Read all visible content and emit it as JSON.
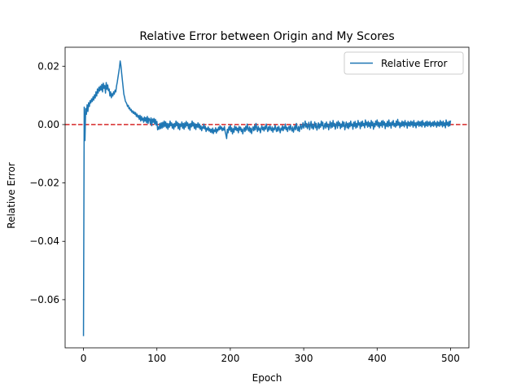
{
  "chart_data": {
    "type": "line",
    "title": "Relative Error between Origin and My Scores",
    "xlabel": "Epoch",
    "ylabel": "Relative Error",
    "xlim": [
      -25,
      525
    ],
    "ylim": [
      -0.0765,
      0.0265
    ],
    "x_ticks": [
      0,
      100,
      200,
      300,
      400,
      500
    ],
    "y_ticks": [
      -0.06,
      -0.04,
      -0.02,
      0.0,
      0.02
    ],
    "x_tick_labels": [
      "0",
      "100",
      "200",
      "300",
      "400",
      "500"
    ],
    "y_tick_labels": [
      "−0.06",
      "−0.04",
      "−0.02",
      "0.00",
      "0.02"
    ],
    "grid": false,
    "legend_position": "top-right",
    "reference_line": {
      "y": 0.0,
      "color": "#d62728",
      "style": "dashed"
    },
    "series": [
      {
        "name": "Relative Error",
        "color": "#1f77b4",
        "x_start": 0,
        "x_step": 1,
        "values": [
          -0.0725,
          0.006,
          -0.0055,
          0.0055,
          0.0035,
          0.0068,
          0.0045,
          0.0075,
          0.0062,
          0.0082,
          0.0074,
          0.0088,
          0.0079,
          0.0095,
          0.0084,
          0.0102,
          0.0091,
          0.0112,
          0.0098,
          0.0122,
          0.0108,
          0.0128,
          0.0115,
          0.0132,
          0.0118,
          0.0138,
          0.0112,
          0.0142,
          0.0124,
          0.0134,
          0.0108,
          0.0144,
          0.0121,
          0.0136,
          0.0116,
          0.0122,
          0.0098,
          0.0112,
          0.0092,
          0.0106,
          0.0098,
          0.0112,
          0.0104,
          0.0118,
          0.0112,
          0.0132,
          0.0145,
          0.0162,
          0.0178,
          0.0195,
          0.0218,
          0.0202,
          0.0176,
          0.0152,
          0.0128,
          0.0104,
          0.0094,
          0.0081,
          0.0076,
          0.0071,
          0.0062,
          0.0066,
          0.0054,
          0.0058,
          0.0048,
          0.0052,
          0.0042,
          0.0047,
          0.0038,
          0.0044,
          0.0035,
          0.0041,
          0.0028,
          0.0036,
          0.0025,
          0.0031,
          0.0018,
          0.0032,
          0.0012,
          0.0028,
          0.0015,
          0.0022,
          0.0008,
          0.0026,
          0.0012,
          0.0024,
          0.0006,
          0.0028,
          0.0004,
          0.0022,
          0.0018,
          0.0004,
          0.0023,
          -0.0004,
          0.0019,
          0.0008,
          0.0021,
          0.0002,
          0.0018,
          -0.0002,
          0.0011,
          -0.0018,
          -0.0008,
          -0.0016,
          0.0004,
          -0.0014,
          0.0006,
          -0.0012,
          0.0008,
          -0.0009,
          0.0012,
          -0.0006,
          0.0009,
          -0.0011,
          0.0004,
          -0.0016,
          0.0003,
          -0.0009,
          0.0012,
          -0.0004,
          0.0006,
          -0.0012,
          0.0002,
          -0.0016,
          0.0004,
          -0.0008,
          0.0012,
          -0.0004,
          0.0008,
          -0.0014,
          0.0004,
          -0.0018,
          0.0002,
          -0.0006,
          0.0009,
          -0.0012,
          0.0004,
          -0.0016,
          0.0006,
          -0.0009,
          0.0011,
          -0.0004,
          0.0006,
          -0.0014,
          0.0002,
          -0.0019,
          0.0004,
          -0.0008,
          0.0012,
          -0.0005,
          0.0007,
          -0.0013,
          0.0003,
          -0.0017,
          0.0001,
          -0.0009,
          0.0006,
          -0.0011,
          0.0002,
          -0.0016,
          -0.0004,
          -0.0021,
          -0.0008,
          -0.0013,
          0.0002,
          -0.0015,
          -0.0006,
          -0.0024,
          -0.0012,
          -0.0019,
          -0.0008,
          -0.0022,
          -0.0014,
          -0.0026,
          -0.0016,
          -0.0028,
          -0.0012,
          -0.0031,
          -0.0018,
          -0.0024,
          -0.0011,
          -0.0029,
          -0.0016,
          -0.0022,
          -0.0009,
          -0.0018,
          -0.0004,
          -0.0016,
          -0.0008,
          -0.0021,
          -0.0012,
          -0.0019,
          -0.0006,
          -0.0024,
          -0.0035,
          -0.0048,
          -0.0016,
          -0.0028,
          -0.0008,
          -0.0019,
          -0.0002,
          -0.0024,
          -0.0011,
          -0.0032,
          -0.0014,
          -0.0026,
          -0.0005,
          -0.0018,
          -0.0008,
          -0.0021,
          -0.0012,
          -0.0028,
          -0.0006,
          -0.0019,
          -0.0009,
          -0.0024,
          -0.0015,
          -0.0032,
          -0.0018,
          -0.0011,
          -0.0024,
          -0.0006,
          -0.0019,
          0.0002,
          -0.0014,
          -0.0022,
          -0.0008,
          -0.0026,
          -0.0012,
          -0.0031,
          -0.0016,
          -0.0008,
          -0.0021,
          -0.0004,
          -0.0018,
          0.0004,
          -0.0011,
          -0.0024,
          -0.0006,
          -0.0019,
          -0.0012,
          -0.0028,
          -0.0014,
          -0.0004,
          -0.0018,
          -0.0009,
          -0.0022,
          -0.0006,
          -0.0016,
          0.0002,
          -0.0012,
          -0.0024,
          -0.0008,
          -0.0019,
          -0.0004,
          -0.0014,
          -0.0021,
          -0.0008,
          -0.0026,
          -0.0012,
          -0.0018,
          -0.0002,
          -0.0014,
          -0.0024,
          -0.0009,
          -0.0022,
          -0.0006,
          -0.0016,
          -0.0028,
          -0.0012,
          -0.0019,
          -0.0004,
          -0.0021,
          -0.0008,
          -0.0014,
          0.0002,
          -0.0018,
          -0.0009,
          -0.0024,
          -0.0011,
          -0.0006,
          -0.0019,
          -0.0002,
          -0.0014,
          -0.0022,
          -0.0008,
          -0.0026,
          -0.0014,
          -0.0004,
          -0.0018,
          0.0004,
          -0.0012,
          -0.0021,
          -0.0006,
          -0.0024,
          -0.0009,
          0.0001,
          -0.0016,
          -0.0008,
          0.0006,
          -0.0012,
          -0.0004,
          0.0012,
          -0.0009,
          0.0004,
          -0.0014,
          -0.0006,
          0.0008,
          -0.0018,
          -0.0004,
          0.0011,
          -0.0012,
          0.0002,
          -0.0016,
          -0.0006,
          0.0009,
          -0.0011,
          0.0004,
          -0.0019,
          -0.0008,
          0.0006,
          -0.0014,
          0.0002,
          -0.0009,
          0.0012,
          -0.0004,
          0.0008,
          -0.0016,
          -0.0006,
          0.0004,
          -0.0012,
          0.0009,
          -0.0008,
          0.0002,
          -0.0018,
          -0.0004,
          0.0011,
          -0.0012,
          0.0006,
          -0.0009,
          0.0014,
          -0.0006,
          0.0004,
          -0.0016,
          -0.0002,
          0.0008,
          -0.0012,
          0.0012,
          -0.0004,
          0.0006,
          -0.0014,
          0.0002,
          -0.0009,
          0.0011,
          -0.0006,
          0.0008,
          -0.0018,
          -0.0004,
          0.0009,
          -0.0011,
          0.0004,
          -0.0014,
          0.0006,
          -0.0008,
          0.0012,
          -0.0004,
          0.0002,
          -0.0016,
          0.0008,
          -0.0006,
          0.0011,
          -0.0012,
          0.0004,
          -0.0009,
          0.0014,
          -0.0002,
          0.0006,
          -0.0014,
          0.0009,
          -0.0006,
          0.0012,
          -0.0004,
          0.0004,
          -0.0011,
          0.0016,
          -0.0002,
          0.0008,
          -0.0009,
          0.0011,
          -0.0006,
          0.0006,
          -0.0012,
          0.0014,
          -0.0004,
          0.0009,
          -0.0016,
          0.0004,
          -0.0008,
          0.0012,
          -0.0002,
          0.0016,
          -0.0006,
          0.0008,
          -0.0011,
          0.0006,
          -0.0004,
          0.0012,
          -0.0009,
          0.0014,
          -0.0002,
          0.0009,
          -0.0014,
          0.0004,
          -0.0006,
          0.0011,
          -0.0008,
          0.0016,
          -0.0004,
          0.0006,
          -0.0012,
          0.0009,
          -0.0002,
          0.0014,
          -0.0006,
          0.0004,
          -0.0009,
          0.0012,
          -0.0004,
          0.0018,
          -0.0002,
          0.0008,
          -0.0011,
          0.0006,
          -0.0006,
          0.0012,
          -0.0004,
          0.0009,
          -0.0008,
          0.0014,
          -0.0002,
          0.0006,
          -0.0012,
          0.0011,
          -0.0004,
          0.0008,
          -0.0006,
          0.0012,
          -0.0002,
          0.0009,
          -0.0009,
          0.0014,
          -0.0004,
          0.0006,
          -0.0011,
          0.0008,
          -0.0002,
          0.0012,
          -0.0006,
          0.0009,
          -0.0004,
          0.0011,
          -0.0008,
          0.0014,
          -0.0002,
          0.0006,
          -0.0009,
          0.0009,
          -0.0004,
          0.0012,
          -0.0006,
          0.0008,
          -0.0002,
          0.0011,
          -0.0008,
          0.0006,
          -0.0004,
          0.0009,
          -0.0006,
          0.0012,
          -0.0002,
          0.0006,
          -0.0009,
          0.0011,
          -0.0004,
          0.0008,
          -0.0006,
          0.0014,
          -0.0002,
          0.0009,
          -0.0008,
          0.0012,
          -0.0004,
          0.0006,
          -0.0011,
          0.0016,
          -0.0002,
          0.0008,
          -0.0006,
          0.0011,
          -0.0004,
          0.0014
        ]
      }
    ]
  }
}
